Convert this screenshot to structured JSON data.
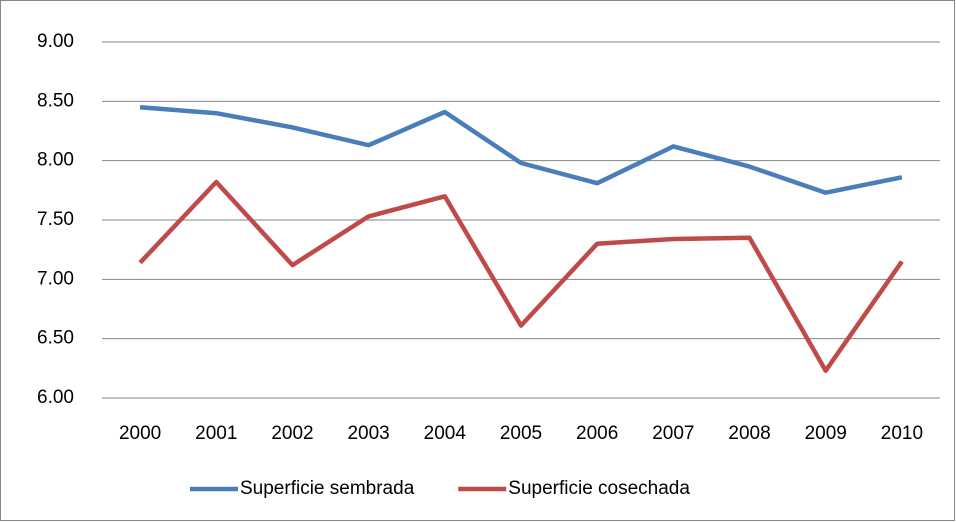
{
  "chart_data": {
    "type": "line",
    "categories": [
      "2000",
      "2001",
      "2002",
      "2003",
      "2004",
      "2005",
      "2006",
      "2007",
      "2008",
      "2009",
      "2010"
    ],
    "series": [
      {
        "name": "Superficie sembrada",
        "color": "#4a7ebb",
        "values": [
          8.45,
          8.4,
          8.28,
          8.13,
          8.41,
          7.98,
          7.81,
          8.12,
          7.95,
          7.73,
          7.86
        ]
      },
      {
        "name": "Superficie cosechada",
        "color": "#be4b48",
        "values": [
          7.14,
          7.82,
          7.12,
          7.53,
          7.7,
          6.61,
          7.3,
          7.34,
          7.35,
          6.23,
          7.15
        ]
      }
    ],
    "ylim": [
      6,
      9
    ],
    "yticks": [
      {
        "value": 6,
        "label": "6.00"
      },
      {
        "value": 6.5,
        "label": "6.50"
      },
      {
        "value": 7,
        "label": "7.00"
      },
      {
        "value": 7.5,
        "label": "7.50"
      },
      {
        "value": 8,
        "label": "8.00"
      },
      {
        "value": 8.5,
        "label": "8.50"
      },
      {
        "value": 9,
        "label": "9.00"
      }
    ],
    "grid": true,
    "legend": "bottom"
  }
}
